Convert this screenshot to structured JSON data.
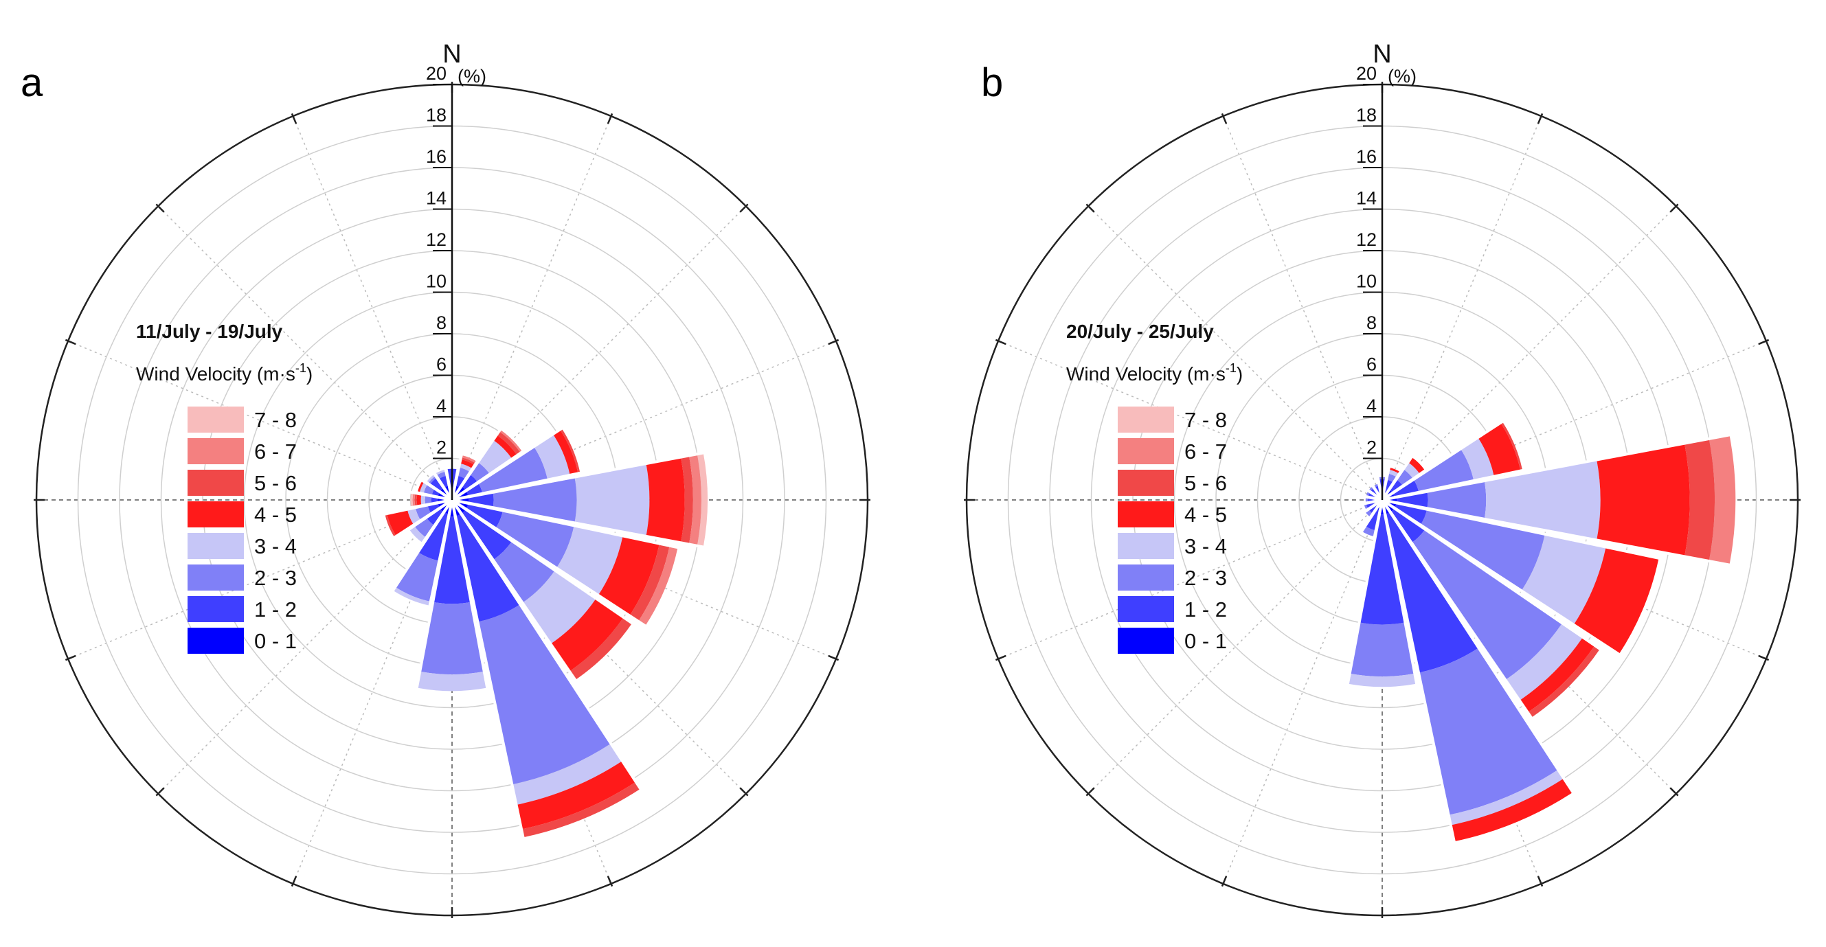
{
  "figure": {
    "panel_a_letter": "a",
    "panel_b_letter": "b"
  },
  "chart_data": [
    {
      "type": "wind_rose",
      "panel": "a",
      "title": "11/July - 19/July",
      "legend_title": "Wind Velocity (m·s",
      "legend_title_sup": "-1",
      "legend_title_end": ")",
      "north_label": "N",
      "unit_label": "(%)",
      "radial_max": 20,
      "radial_ticks": [
        2,
        4,
        6,
        8,
        10,
        12,
        14,
        16,
        18,
        20
      ],
      "bins": [
        "0 - 1",
        "1 - 2",
        "2 - 3",
        "3 - 4",
        "4 - 5",
        "5 - 6",
        "6 - 7",
        "7 - 8"
      ],
      "colors": [
        "#0000ff",
        "#3f3fff",
        "#8080f7",
        "#c6c6f7",
        "#ff1a1a",
        "#f04848",
        "#f48080",
        "#f8bcbc"
      ],
      "directions": [
        0,
        22.5,
        45,
        67.5,
        90,
        112.5,
        135,
        157.5,
        180,
        202.5,
        225,
        247.5,
        270,
        292.5,
        315,
        337.5
      ],
      "cumulative": [
        [
          0.7,
          1.5,
          1.5,
          1.5,
          1.5,
          1.5,
          1.5,
          1.5
        ],
        [
          0.7,
          1.2,
          1.6,
          1.8,
          2.0,
          2.1,
          2.2,
          2.2
        ],
        [
          0.8,
          1.5,
          2.2,
          3.5,
          3.8,
          4.0,
          4.1,
          4.1
        ],
        [
          0.8,
          1.5,
          4.7,
          5.8,
          6.2,
          6.3,
          6.3,
          6.3
        ],
        [
          0.8,
          2.0,
          6.0,
          9.5,
          11.2,
          11.6,
          12.0,
          12.3
        ],
        [
          0.8,
          2.5,
          6.0,
          8.4,
          10.2,
          10.7,
          11.1,
          11.1
        ],
        [
          0.8,
          3.5,
          6.0,
          8.4,
          10.0,
          10.5,
          10.5,
          10.5
        ],
        [
          0.8,
          6.0,
          14.0,
          15.0,
          16.2,
          16.6,
          16.6,
          16.6
        ],
        [
          0.8,
          5.0,
          8.4,
          9.2,
          9.2,
          9.2,
          9.2,
          9.2
        ],
        [
          0.7,
          3.0,
          5.0,
          5.2,
          5.2,
          5.2,
          5.2,
          5.2
        ],
        [
          0.7,
          1.5,
          2.2,
          2.5,
          2.5,
          2.5,
          2.5,
          2.5
        ],
        [
          0.7,
          1.2,
          1.8,
          2.2,
          3.2,
          3.3,
          3.3,
          3.3
        ],
        [
          0.7,
          1.0,
          1.3,
          1.5,
          1.7,
          1.8,
          1.9,
          2.0
        ],
        [
          0.7,
          1.0,
          1.4,
          1.6,
          1.7,
          1.7,
          1.7,
          1.7
        ],
        [
          0.7,
          1.3,
          1.4,
          1.5,
          1.5,
          1.5,
          1.5,
          1.5
        ],
        [
          0.7,
          1.2,
          1.4,
          1.5,
          1.5,
          1.5,
          1.5,
          1.5
        ]
      ]
    },
    {
      "type": "wind_rose",
      "panel": "b",
      "title": "20/July - 25/July",
      "legend_title": "Wind Velocity (m·s",
      "legend_title_sup": "-1",
      "legend_title_end": ")",
      "north_label": "N",
      "unit_label": "(%)",
      "radial_max": 20,
      "radial_ticks": [
        2,
        4,
        6,
        8,
        10,
        12,
        14,
        16,
        18,
        20
      ],
      "bins": [
        "0 - 1",
        "1 - 2",
        "2 - 3",
        "3 - 4",
        "4 - 5",
        "5 - 6",
        "6 - 7",
        "7 - 8"
      ],
      "colors": [
        "#0000ff",
        "#3f3fff",
        "#8080f7",
        "#c6c6f7",
        "#ff1a1a",
        "#f04848",
        "#f48080",
        "#f8bcbc"
      ],
      "directions": [
        0,
        22.5,
        45,
        67.5,
        90,
        112.5,
        135,
        157.5,
        180,
        202.5,
        225,
        247.5,
        270,
        292.5,
        315,
        337.5
      ],
      "cumulative": [
        [
          0.5,
          1.0,
          1.1,
          1.1,
          1.1,
          1.1,
          1.1,
          1.1
        ],
        [
          0.5,
          1.0,
          1.3,
          1.5,
          1.6,
          1.6,
          1.6,
          1.6
        ],
        [
          0.6,
          1.2,
          1.8,
          2.2,
          2.5,
          2.5,
          2.5,
          2.5
        ],
        [
          0.6,
          1.8,
          4.5,
          5.5,
          6.8,
          6.9,
          6.9,
          6.9
        ],
        [
          0.7,
          2.2,
          5.0,
          10.5,
          14.8,
          16.0,
          17.0,
          17.0
        ],
        [
          0.7,
          2.2,
          8.0,
          11.0,
          13.6,
          13.6,
          13.6,
          13.6
        ],
        [
          0.7,
          2.5,
          10.5,
          11.7,
          12.4,
          12.7,
          12.7,
          12.7
        ],
        [
          0.7,
          8.5,
          15.5,
          16.0,
          16.8,
          16.8,
          16.8,
          16.8
        ],
        [
          0.7,
          6.0,
          8.5,
          9.0,
          9.0,
          9.0,
          9.0,
          9.0
        ],
        [
          0.5,
          1.5,
          1.8,
          1.8,
          1.8,
          1.8,
          1.8,
          1.8
        ],
        [
          0.4,
          0.8,
          1.0,
          1.0,
          1.0,
          1.0,
          1.0,
          1.0
        ],
        [
          0.4,
          0.8,
          0.9,
          0.9,
          0.9,
          0.9,
          0.9,
          0.9
        ],
        [
          0.4,
          0.7,
          0.8,
          0.8,
          0.8,
          0.8,
          0.8,
          0.8
        ],
        [
          0.4,
          0.7,
          0.8,
          0.8,
          0.8,
          0.8,
          0.8,
          0.8
        ],
        [
          0.4,
          0.7,
          0.8,
          0.8,
          0.8,
          0.8,
          0.8,
          0.8
        ],
        [
          0.4,
          0.7,
          0.8,
          0.8,
          0.8,
          0.8,
          0.8,
          0.8
        ]
      ]
    }
  ]
}
